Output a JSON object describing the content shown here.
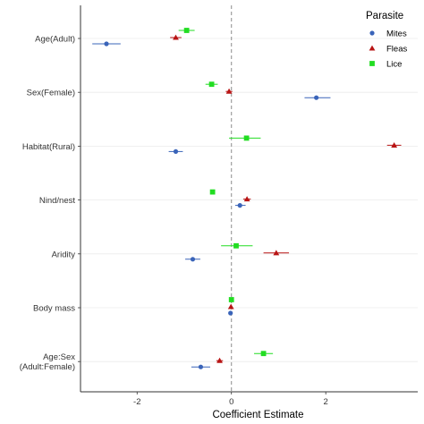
{
  "chart_data": {
    "type": "scatter",
    "subtype": "forest-plot",
    "title": "",
    "xlabel": "Coefficient Estimate",
    "ylabel": "",
    "xlim": [
      -3.2,
      3.95
    ],
    "x_ticks": [
      -2,
      0,
      2
    ],
    "zero_line": "dashed",
    "grid": "horizontal",
    "legend_position": "top-right",
    "legend_title": "Parasite",
    "categories": [
      {
        "label_lines": [
          "Age(Adult)"
        ]
      },
      {
        "label_lines": [
          "Sex(Female)"
        ]
      },
      {
        "label_lines": [
          "Habitat(Rural)"
        ]
      },
      {
        "label_lines": [
          "Nind/nest"
        ]
      },
      {
        "label_lines": [
          "Aridity"
        ]
      },
      {
        "label_lines": [
          "Body mass"
        ]
      },
      {
        "label_lines": [
          "Age:Sex",
          "(Adult:Female)"
        ]
      }
    ],
    "series": [
      {
        "name": "Mites",
        "color": "#3a64b9",
        "marker": "circle",
        "points": [
          {
            "category": "Age(Adult)",
            "value": -2.65,
            "low": -2.95,
            "high": -2.35
          },
          {
            "category": "Sex(Female)",
            "value": 1.8,
            "low": 1.55,
            "high": 2.1
          },
          {
            "category": "Habitat(Rural)",
            "value": -1.18,
            "low": -1.33,
            "high": -1.03
          },
          {
            "category": "Nind/nest",
            "value": 0.18,
            "low": 0.08,
            "high": 0.3
          },
          {
            "category": "Aridity",
            "value": -0.82,
            "low": -0.98,
            "high": -0.66
          },
          {
            "category": "Body mass",
            "value": -0.02,
            "low": -0.05,
            "high": 0.01
          },
          {
            "category": "Age:Sex",
            "value": -0.65,
            "low": -0.85,
            "high": -0.45
          }
        ]
      },
      {
        "name": "Fleas",
        "color": "#b81414",
        "marker": "triangle",
        "points": [
          {
            "category": "Age(Adult)",
            "value": -1.18,
            "low": -1.3,
            "high": -1.06
          },
          {
            "category": "Sex(Female)",
            "value": -0.05,
            "low": -0.12,
            "high": 0.02
          },
          {
            "category": "Habitat(Rural)",
            "value": 3.45,
            "low": 3.3,
            "high": 3.6
          },
          {
            "category": "Nind/nest",
            "value": 0.33,
            "low": 0.25,
            "high": 0.41
          },
          {
            "category": "Aridity",
            "value": 0.95,
            "low": 0.68,
            "high": 1.22
          },
          {
            "category": "Body mass",
            "value": -0.01,
            "low": -0.04,
            "high": 0.02
          },
          {
            "category": "Age:Sex",
            "value": -0.25,
            "low": -0.32,
            "high": -0.18
          }
        ]
      },
      {
        "name": "Lice",
        "color": "#22dd22",
        "marker": "square",
        "points": [
          {
            "category": "Age(Adult)",
            "value": -0.95,
            "low": -1.12,
            "high": -0.78
          },
          {
            "category": "Sex(Female)",
            "value": -0.42,
            "low": -0.55,
            "high": -0.29
          },
          {
            "category": "Habitat(Rural)",
            "value": 0.32,
            "low": -0.05,
            "high": 0.62
          },
          {
            "category": "Nind/nest",
            "value": -0.4,
            "low": -0.44,
            "high": -0.36
          },
          {
            "category": "Aridity",
            "value": 0.1,
            "low": -0.22,
            "high": 0.45
          },
          {
            "category": "Body mass",
            "value": 0.0,
            "low": -0.02,
            "high": 0.02
          },
          {
            "category": "Age:Sex",
            "value": 0.68,
            "low": 0.48,
            "high": 0.88
          }
        ]
      }
    ]
  }
}
